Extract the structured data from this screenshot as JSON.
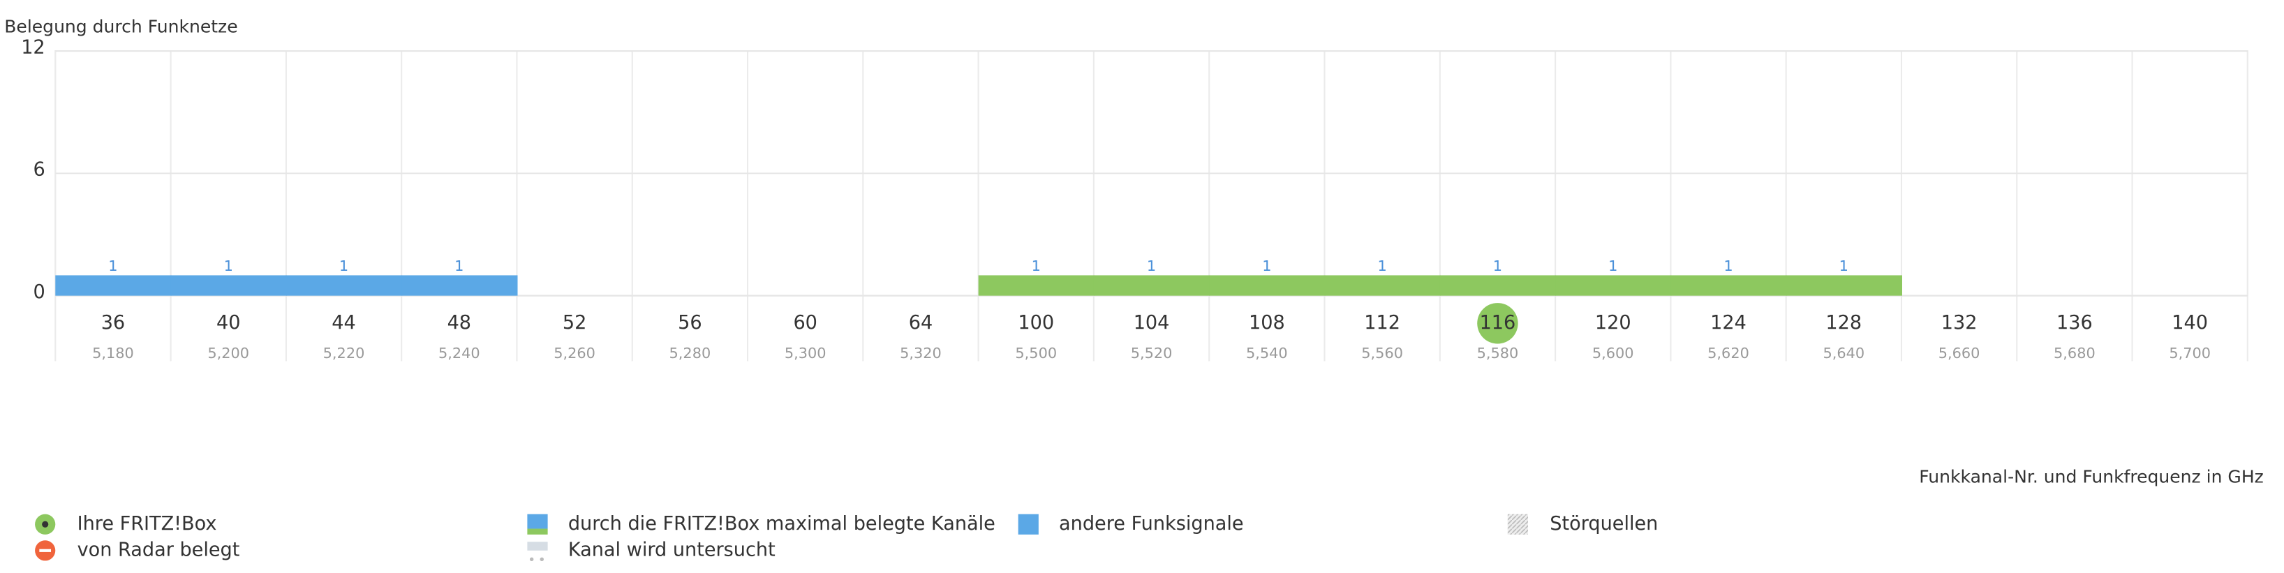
{
  "chart_data": {
    "type": "bar",
    "title": "Belegung durch Funknetze",
    "x_label": "Funkkanal-Nr. und Funkfrequenz in GHz",
    "categories": [
      "36",
      "40",
      "44",
      "48",
      "52",
      "56",
      "60",
      "64",
      "100",
      "104",
      "108",
      "112",
      "116",
      "120",
      "124",
      "128",
      "132",
      "136",
      "140"
    ],
    "frequencies": [
      "5,180",
      "5,200",
      "5,220",
      "5,240",
      "5,260",
      "5,280",
      "5,300",
      "5,320",
      "5,500",
      "5,520",
      "5,540",
      "5,560",
      "5,580",
      "5,600",
      "5,620",
      "5,640",
      "5,660",
      "5,680",
      "5,700"
    ],
    "own_channel": "116",
    "series": [
      {
        "name": "andere Funksignale",
        "color": "#5ba8e6",
        "values": [
          1,
          1,
          1,
          1,
          null,
          null,
          null,
          null,
          null,
          null,
          null,
          null,
          null,
          null,
          null,
          null,
          null,
          null,
          null
        ]
      },
      {
        "name": "durch die FRITZ!Box maximal belegte Kanäle",
        "color": "#8dc85f",
        "values": [
          null,
          null,
          null,
          null,
          null,
          null,
          null,
          null,
          1,
          1,
          1,
          1,
          1,
          1,
          1,
          1,
          null,
          null,
          null
        ]
      }
    ],
    "ylim": [
      0,
      12
    ],
    "yticks": [
      0,
      6,
      12
    ],
    "grid": true,
    "legend_items": [
      "Ihre FRITZ!Box",
      "von Radar belegt",
      "Kanal wird untersucht",
      "Störquellen"
    ]
  }
}
